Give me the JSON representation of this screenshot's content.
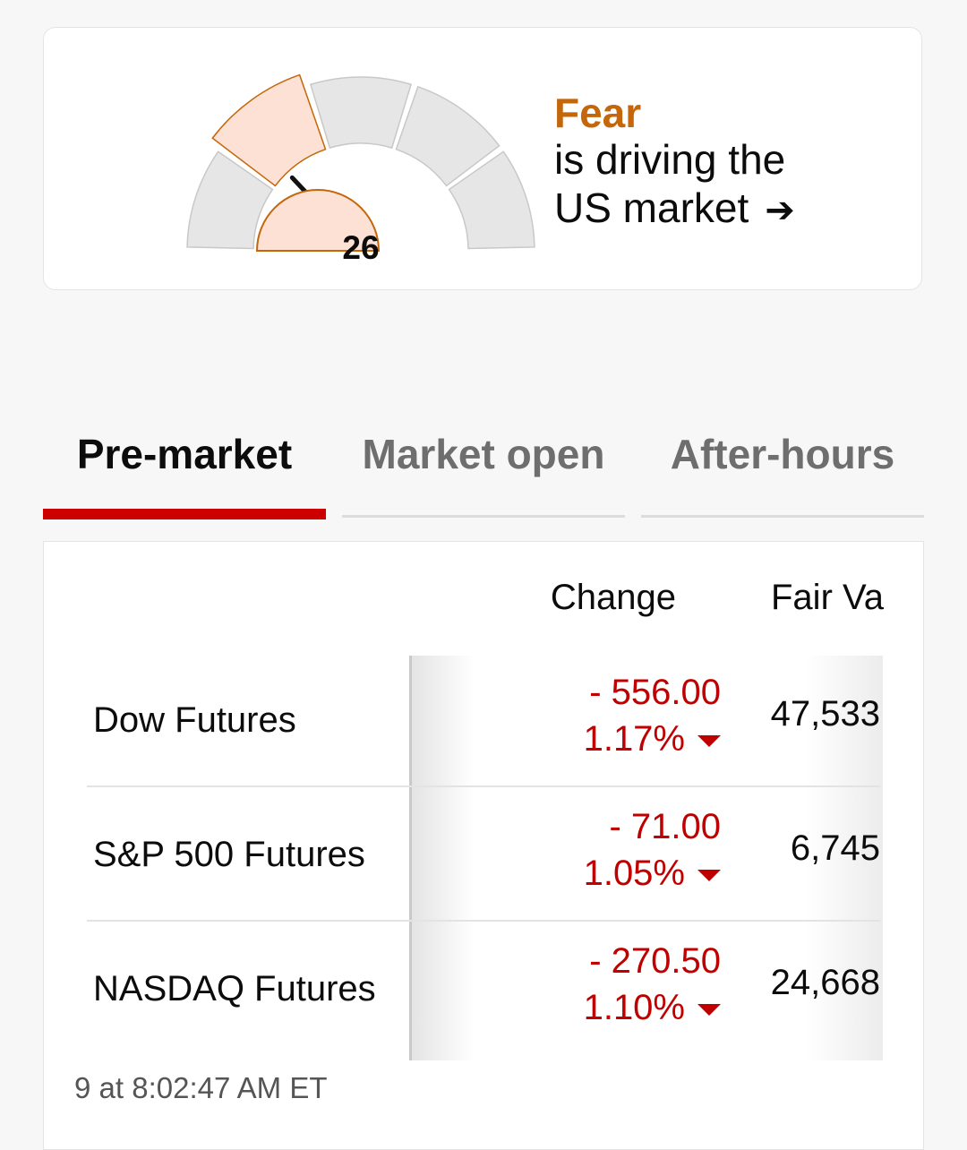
{
  "fear_greed": {
    "value": "26",
    "label": "Fear",
    "line1": "is driving the",
    "line2": "US market",
    "arrow_icon": "right-arrow-icon",
    "colors": {
      "fear": "#c4660a",
      "active_segment": "#fde1d4",
      "inactive_segment": "#e6e6e6"
    },
    "needle_fraction": 0.26
  },
  "tabs": [
    {
      "label": "Pre-market",
      "active": true
    },
    {
      "label": "Market open",
      "active": false
    },
    {
      "label": "After-hours",
      "active": false
    }
  ],
  "table": {
    "headers": {
      "change": "Change",
      "fair_value": "Fair Va"
    },
    "rows": [
      {
        "name": "Dow Futures",
        "change": "- 556.00",
        "percent": "1.17%",
        "fair_value": "47,533"
      },
      {
        "name": "S&P 500 Futures",
        "change": "- 71.00",
        "percent": "1.05%",
        "fair_value": "6,745"
      },
      {
        "name": "NASDAQ Futures",
        "change": "- 270.50",
        "percent": "1.10%",
        "fair_value": "24,668"
      }
    ],
    "timestamp": "9 at 8:02:47 AM ET",
    "colors": {
      "negative": "#c00000",
      "tab_accent": "#cc0000"
    }
  }
}
